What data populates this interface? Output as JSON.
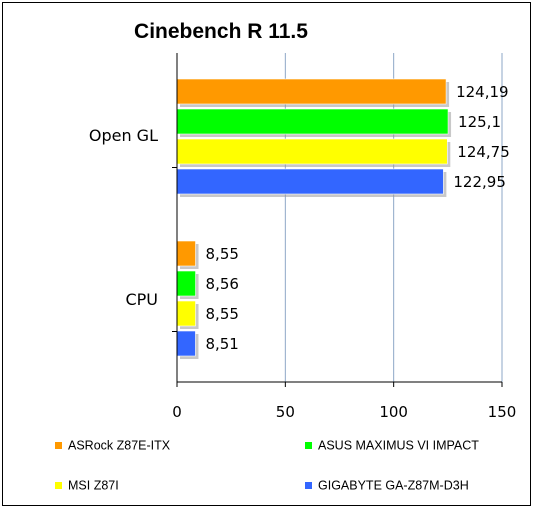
{
  "chart_data": {
    "type": "bar",
    "orientation": "horizontal",
    "title": "Cinebench R 11.5",
    "categories": [
      "Open GL",
      "CPU"
    ],
    "series": [
      {
        "name": "ASRock Z87E-ITX",
        "color": "#FF9900",
        "values": [
          124.19,
          8.55
        ],
        "labels": [
          "124,19",
          "8,55"
        ]
      },
      {
        "name": "ASUS MAXIMUS VI IMPACT",
        "color": "#00FF00",
        "values": [
          125.1,
          8.56
        ],
        "labels": [
          "125,1",
          "8,56"
        ]
      },
      {
        "name": "MSI Z87I",
        "color": "#FFFF00",
        "values": [
          124.75,
          8.55
        ],
        "labels": [
          "124,75",
          "8,55"
        ]
      },
      {
        "name": "GIGABYTE GA-Z87M-D3H",
        "color": "#3366FF",
        "values": [
          122.95,
          8.51
        ],
        "labels": [
          "122,95",
          "8,51"
        ]
      }
    ],
    "xlim": [
      0,
      150
    ],
    "xticks": [
      0,
      50,
      100,
      150
    ],
    "grid": true,
    "legend": "bottom"
  }
}
